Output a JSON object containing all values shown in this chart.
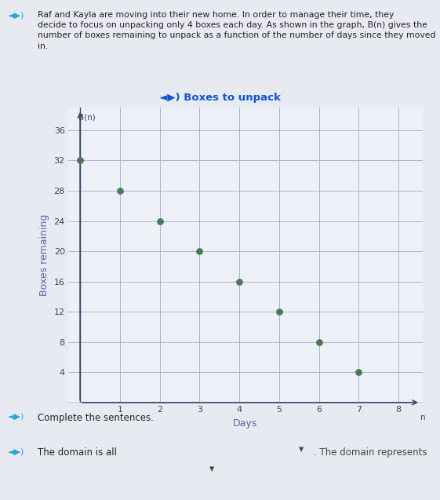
{
  "title": "◄▶) Boxes to unpack",
  "xlabel": "Days",
  "ylabel": "Boxes remaining",
  "y_axis_label": "B(n)",
  "x_axis_label": "n",
  "x_data": [
    0,
    1,
    2,
    3,
    4,
    5,
    6,
    7
  ],
  "y_data": [
    32,
    28,
    24,
    20,
    16,
    12,
    8,
    4
  ],
  "dot_color": "#4a7a55",
  "dot_size": 28,
  "xlim": [
    -0.3,
    8.6
  ],
  "ylim": [
    0,
    39
  ],
  "xticks": [
    1,
    2,
    3,
    4,
    5,
    6,
    7,
    8
  ],
  "yticks": [
    4,
    8,
    12,
    16,
    20,
    24,
    28,
    32,
    36
  ],
  "grid_color": "#aab4d8",
  "plot_bg_color": "#eef0f8",
  "fig_bg_color": "#e8eaf2",
  "title_color": "#1155cc",
  "axis_label_color": "#5566aa",
  "tick_label_color": "#334466",
  "arrow_color": "#334466",
  "text_block_color": "#222222",
  "speaker_color": "#22aadd",
  "sentence1_color": "#22aadd",
  "sentence2_prefix_color": "#22aadd",
  "sentence2_suffix_color": "#444444",
  "dropdown_bg": "#dde4ef",
  "text_block": "Raf and Kayla are moving into their new home. In order to manage their time, they\ndecide to focus on unpacking only 4 boxes each day. As shown in the graph, B(n) gives the\nnumber of boxes remaining to unpack as a function of the number of days since they moved\nin.",
  "sentence1": "◄▶) Complete the sentences.",
  "sentence2_prefix": "◄▶) The domain is all",
  "sentence2_suffix": ". The domain represents"
}
